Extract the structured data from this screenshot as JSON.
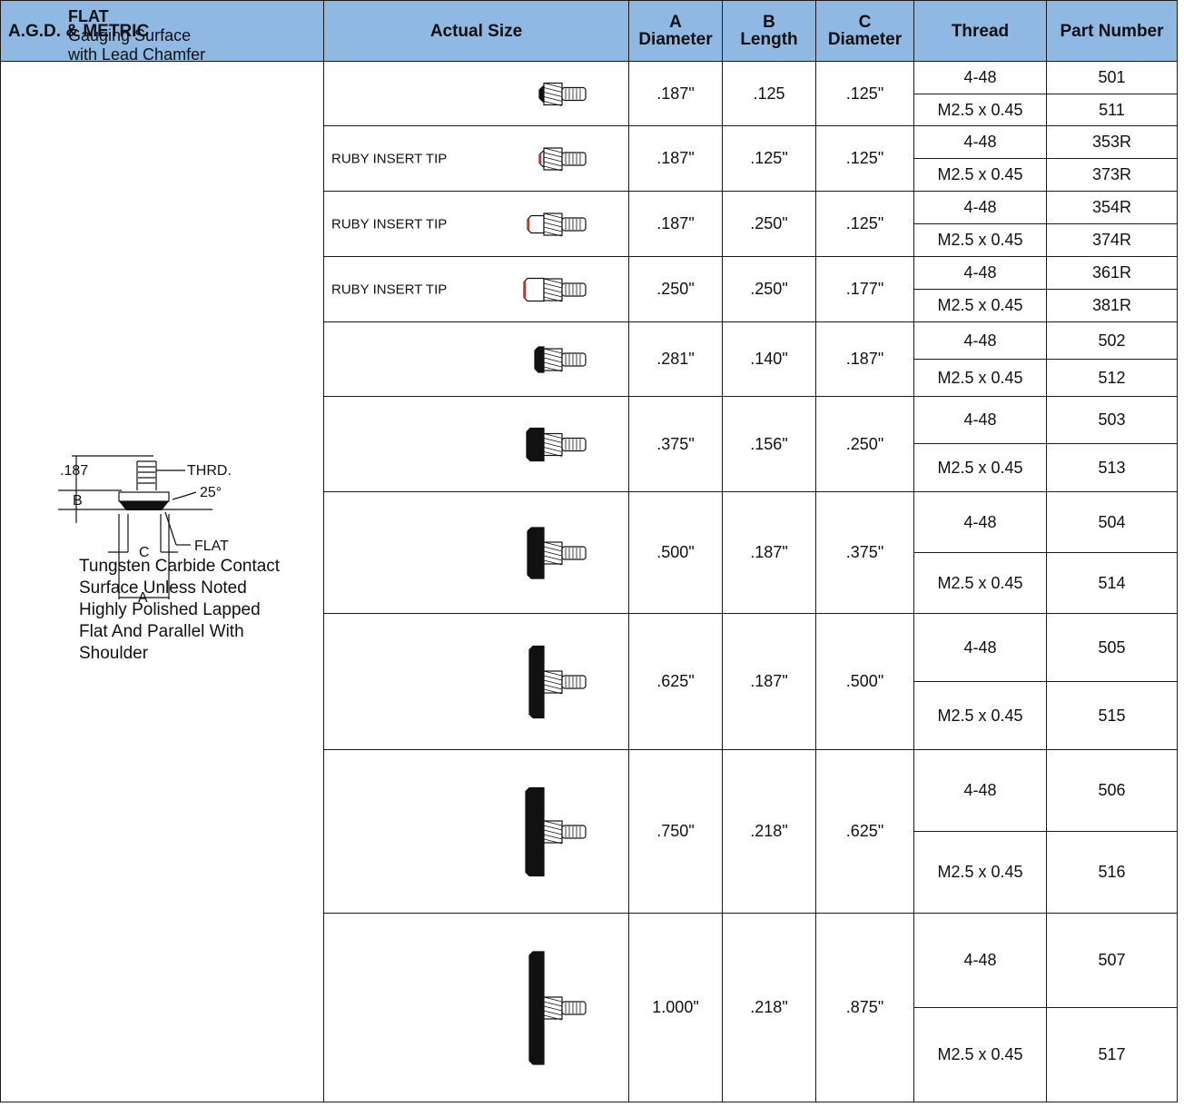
{
  "headers": {
    "agd": "A.G.D. & METRIC",
    "actual": "Actual Size",
    "a_letter": "A",
    "a_word": "Diameter",
    "b_letter": "B",
    "b_word": "Length",
    "c_letter": "C",
    "c_word": "Diameter",
    "thread": "Thread",
    "part": "Part Number"
  },
  "description": {
    "title": "FLAT",
    "line1": "Gauging Surface",
    "line2": "with Lead Chamfer",
    "notes": [
      "Tungsten Carbide Contact",
      "Surface Unless Noted",
      "Highly Polished Lapped",
      "Flat And Parallel With",
      "Shoulder"
    ],
    "diagram": {
      "dim_187": ".187",
      "thrd": "THRD.",
      "b": "B",
      "angle": "25°",
      "c": "C",
      "flat": "FLAT",
      "a": "A"
    }
  },
  "colors": {
    "header_bg": "#8fb8e3",
    "ruby": "#c0392b",
    "tip": "#111111"
  },
  "rows": [
    {
      "label": "",
      "a": ".187\"",
      "b": ".125",
      "c": ".125\"",
      "threads": [
        "4-48",
        "M2.5 x 0.45"
      ],
      "parts": [
        "501",
        "511"
      ]
    },
    {
      "label": "RUBY INSERT TIP",
      "a": ".187\"",
      "b": ".125\"",
      "c": ".125\"",
      "threads": [
        "4-48",
        "M2.5 x 0.45"
      ],
      "parts": [
        "353R",
        "373R"
      ]
    },
    {
      "label": "RUBY INSERT TIP",
      "a": ".187\"",
      "b": ".250\"",
      "c": ".125\"",
      "threads": [
        "4-48",
        "M2.5 x 0.45"
      ],
      "parts": [
        "354R",
        "374R"
      ]
    },
    {
      "label": "RUBY INSERT TIP",
      "a": ".250\"",
      "b": ".250\"",
      "c": ".177\"",
      "threads": [
        "4-48",
        "M2.5 x 0.45"
      ],
      "parts": [
        "361R",
        "381R"
      ]
    },
    {
      "label": "",
      "a": ".281\"",
      "b": ".140\"",
      "c": ".187\"",
      "threads": [
        "4-48",
        "M2.5 x 0.45"
      ],
      "parts": [
        "502",
        "512"
      ]
    },
    {
      "label": "",
      "a": ".375\"",
      "b": ".156\"",
      "c": ".250\"",
      "threads": [
        "4-48",
        "M2.5 x 0.45"
      ],
      "parts": [
        "503",
        "513"
      ]
    },
    {
      "label": "",
      "a": ".500\"",
      "b": ".187\"",
      "c": ".375\"",
      "threads": [
        "4-48",
        "M2.5 x 0.45"
      ],
      "parts": [
        "504",
        "514"
      ]
    },
    {
      "label": "",
      "a": ".625\"",
      "b": ".187\"",
      "c": ".500\"",
      "threads": [
        "4-48",
        "M2.5 x 0.45"
      ],
      "parts": [
        "505",
        "515"
      ]
    },
    {
      "label": "",
      "a": ".750\"",
      "b": ".218\"",
      "c": ".625\"",
      "threads": [
        "4-48",
        "M2.5 x 0.45"
      ],
      "parts": [
        "506",
        "516"
      ]
    },
    {
      "label": "",
      "a": "1.000\"",
      "b": ".218\"",
      "c": ".875\"",
      "threads": [
        "4-48",
        "M2.5 x 0.45"
      ],
      "parts": [
        "507",
        "517"
      ]
    }
  ]
}
